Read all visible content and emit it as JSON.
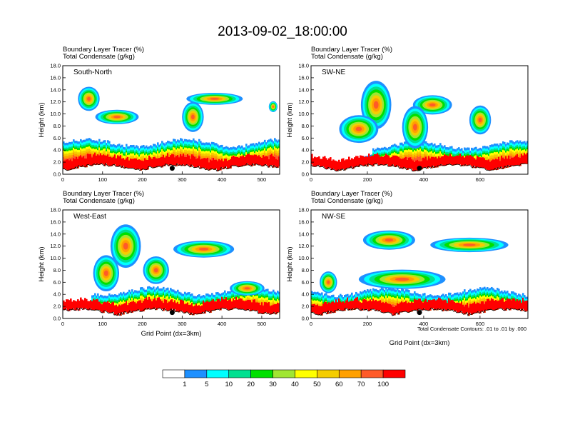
{
  "title": "2013-09-02_18:00:00",
  "header_line1": "Boundary Layer Tracer   (%)",
  "header_line2": "Total Condensate   (g/kg)",
  "y_axis_label": "Height (km)",
  "x_axis_label": "Grid Point (dx=3km)",
  "contour_note": "Total Condensate Contours: .01 to .01 by .000",
  "colorbar": {
    "colors": [
      "#ffffff",
      "#1e90ff",
      "#00ffff",
      "#00e090",
      "#00e000",
      "#a0e632",
      "#ffff00",
      "#f5cd00",
      "#ffa000",
      "#ff5a28",
      "#ff0000"
    ],
    "labels": [
      "1",
      "5",
      "10",
      "20",
      "30",
      "40",
      "50",
      "60",
      "70",
      "100"
    ]
  },
  "chart_data": [
    {
      "type": "heatmap",
      "label": "South-North",
      "xticks": [
        "0",
        "100",
        "200",
        "300",
        "400",
        "500"
      ],
      "xlim": [
        0,
        545
      ],
      "yticks": [
        "0.0",
        "2.0",
        "4.0",
        "6.0",
        "8.0",
        "10.0",
        "12.0",
        "14.0",
        "16.0",
        "18.0"
      ],
      "ylim": [
        0,
        18
      ],
      "marker": {
        "x": 275,
        "y": 1.0
      }
    },
    {
      "type": "heatmap",
      "label": "SW-NE",
      "xticks": [
        "0",
        "200",
        "400",
        "600"
      ],
      "xlim": [
        0,
        770
      ],
      "yticks": [
        "0.0",
        "2.0",
        "4.0",
        "6.0",
        "8.0",
        "10.0",
        "12.0",
        "14.0",
        "16.0",
        "18.0"
      ],
      "ylim": [
        0,
        18
      ],
      "marker": {
        "x": 385,
        "y": 1.0
      }
    },
    {
      "type": "heatmap",
      "label": "West-East",
      "xticks": [
        "0",
        "100",
        "200",
        "300",
        "400",
        "500"
      ],
      "xlim": [
        0,
        545
      ],
      "yticks": [
        "0.0",
        "2.0",
        "4.0",
        "6.0",
        "8.0",
        "10.0",
        "12.0",
        "14.0",
        "16.0",
        "18.0"
      ],
      "ylim": [
        0,
        18
      ],
      "marker": {
        "x": 275,
        "y": 1.0
      }
    },
    {
      "type": "heatmap",
      "label": "NW-SE",
      "xticks": [
        "0",
        "200",
        "400",
        "600"
      ],
      "xlim": [
        0,
        770
      ],
      "yticks": [
        "0.0",
        "2.0",
        "4.0",
        "6.0",
        "8.0",
        "10.0",
        "12.0",
        "14.0",
        "16.0",
        "18.0"
      ],
      "ylim": [
        0,
        18
      ],
      "marker": {
        "x": 385,
        "y": 1.0
      }
    }
  ]
}
